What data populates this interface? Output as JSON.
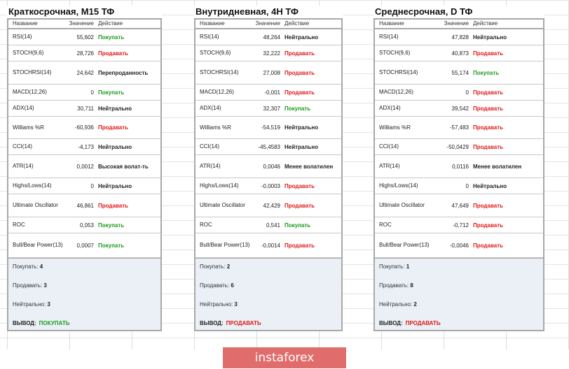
{
  "colors": {
    "buy": "#1e9a1e",
    "sell": "#e01818",
    "summary_bg": "#eaf0f6",
    "banner_bg": "#e06c6c"
  },
  "headers": {
    "name": "Название",
    "value": "Значение",
    "action": "Действие"
  },
  "panels": [
    {
      "title": "Краткосрочная, M15 ТФ",
      "rows": [
        {
          "name": "RSI(14)",
          "value": "55,602",
          "action": "Покупать",
          "type": "buy"
        },
        {
          "name": "STOCH(9,6)",
          "value": "28,726",
          "action": "Продавать",
          "type": "sell"
        },
        {
          "name": "STOCHRSI(14)",
          "value": "24,642",
          "action": "Перепроданность",
          "type": "neu"
        },
        {
          "name": "MACD(12,26)",
          "value": "0",
          "action": "Покупать",
          "type": "buy"
        },
        {
          "name": "ADX(14)",
          "value": "30,711",
          "action": "Нейтрально",
          "type": "neu"
        },
        {
          "name": "Williams %R",
          "value": "-60,936",
          "action": "Продавать",
          "type": "sell"
        },
        {
          "name": "CCI(14)",
          "value": "-4,173",
          "action": "Нейтрально",
          "type": "neu"
        },
        {
          "name": "ATR(14)",
          "value": "0,0012",
          "action": "Высокая волат-ть",
          "type": "neu"
        },
        {
          "name": "Highs/Lows(14)",
          "value": "0",
          "action": "Нейтрально",
          "type": "neu"
        },
        {
          "name": "Ultimate Oscillator",
          "value": "46,861",
          "action": "Продавать",
          "type": "sell"
        },
        {
          "name": "ROC",
          "value": "0,053",
          "action": "Покупать",
          "type": "buy"
        },
        {
          "name": "Bull/Bear Power(13)",
          "value": "0,0007",
          "action": "Покупать",
          "type": "buy"
        }
      ],
      "summary": {
        "buy_label": "Покупать:",
        "buy": "4",
        "sell_label": "Продавать:",
        "sell": "3",
        "neutral_label": "Нейтрально:",
        "neutral": "3",
        "verdict_label": "ВЫВОД:",
        "verdict": "ПОКУПАТЬ",
        "verdict_type": "buy"
      }
    },
    {
      "title": "Внутридневная, 4H ТФ",
      "rows": [
        {
          "name": "RSI(14)",
          "value": "48,264",
          "action": "Нейтрально",
          "type": "neu"
        },
        {
          "name": "STOCH(9,6)",
          "value": "32,222",
          "action": "Продавать",
          "type": "sell"
        },
        {
          "name": "STOCHRSI(14)",
          "value": "27,008",
          "action": "Продавать",
          "type": "sell"
        },
        {
          "name": "MACD(12,26)",
          "value": "-0,001",
          "action": "Продавать",
          "type": "sell"
        },
        {
          "name": "ADX(14)",
          "value": "32,307",
          "action": "Покупать",
          "type": "buy"
        },
        {
          "name": "Williams %R",
          "value": "-54,519",
          "action": "Нейтрально",
          "type": "neu"
        },
        {
          "name": "CCI(14)",
          "value": "-45,4583",
          "action": "Нейтрально",
          "type": "neu"
        },
        {
          "name": "ATR(14)",
          "value": "0,0046",
          "action": "Менее волатилен",
          "type": "neu"
        },
        {
          "name": "Highs/Lows(14)",
          "value": "-0,0003",
          "action": "Продавать",
          "type": "sell"
        },
        {
          "name": "Ultimate Oscillator",
          "value": "42,429",
          "action": "Продавать",
          "type": "sell"
        },
        {
          "name": "ROC",
          "value": "0,541",
          "action": "Покупать",
          "type": "buy"
        },
        {
          "name": "Bull/Bear Power(13)",
          "value": "-0,0014",
          "action": "Продавать",
          "type": "sell"
        }
      ],
      "summary": {
        "buy_label": "Покупать:",
        "buy": "2",
        "sell_label": "Продавать:",
        "sell": "6",
        "neutral_label": "Нейтрально:",
        "neutral": "3",
        "verdict_label": "ВЫВОД:",
        "verdict": "ПРОДАВАТЬ",
        "verdict_type": "sell"
      }
    },
    {
      "title": "Среднесрочная, D ТФ",
      "rows": [
        {
          "name": "RSI(14)",
          "value": "47,828",
          "action": "Нейтрально",
          "type": "neu"
        },
        {
          "name": "STOCH(9,6)",
          "value": "40,873",
          "action": "Продавать",
          "type": "sell"
        },
        {
          "name": "STOCHRSI(14)",
          "value": "55,174",
          "action": "Покупать",
          "type": "buy"
        },
        {
          "name": "MACD(12,26)",
          "value": "0",
          "action": "Продавать",
          "type": "sell"
        },
        {
          "name": "ADX(14)",
          "value": "39,542",
          "action": "Продавать",
          "type": "sell"
        },
        {
          "name": "Williams %R",
          "value": "-57,483",
          "action": "Продавать",
          "type": "sell"
        },
        {
          "name": "CCI(14)",
          "value": "-50,0429",
          "action": "Продавать",
          "type": "sell"
        },
        {
          "name": "ATR(14)",
          "value": "0,0116",
          "action": "Менее волатилен",
          "type": "neu"
        },
        {
          "name": "Highs/Lows(14)",
          "value": "0",
          "action": "Нейтрально",
          "type": "neu"
        },
        {
          "name": "Ultimate Oscillator",
          "value": "47,649",
          "action": "Продавать",
          "type": "sell"
        },
        {
          "name": "ROC",
          "value": "-0,712",
          "action": "Продавать",
          "type": "sell"
        },
        {
          "name": "Bull/Bear Power(13)",
          "value": "-0,0046",
          "action": "Продавать",
          "type": "sell"
        }
      ],
      "summary": {
        "buy_label": "Покупать:",
        "buy": "1",
        "sell_label": "Продавать:",
        "sell": "8",
        "neutral_label": "Нейтрально:",
        "neutral": "2",
        "verdict_label": "ВЫВОД:",
        "verdict": "ПРОДАВАТЬ",
        "verdict_type": "sell"
      }
    }
  ],
  "banner": {
    "text": "instaforex"
  }
}
